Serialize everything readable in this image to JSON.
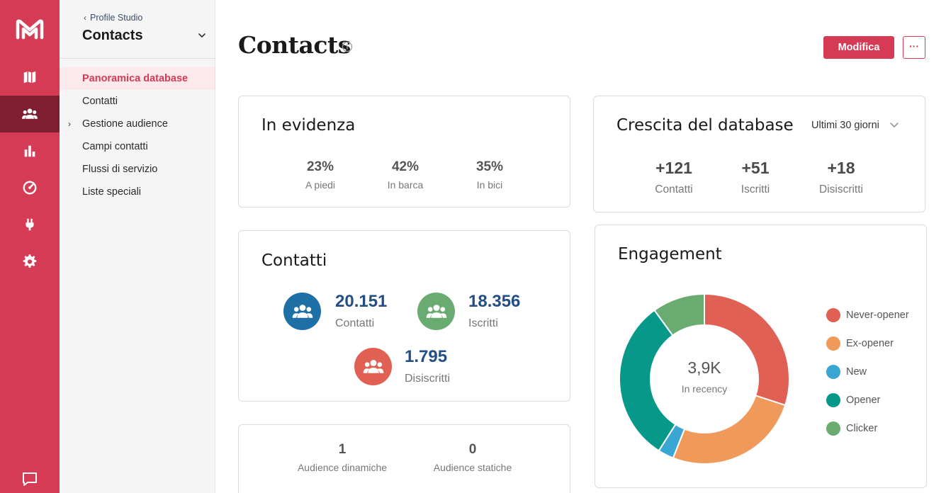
{
  "colors": {
    "brand": "#d63b55",
    "brand_dark": "#7e1e30",
    "accent_blue": "#234f86"
  },
  "rail": {
    "logo": "mailup-logo",
    "items": [
      {
        "icon": "map-icon"
      },
      {
        "icon": "users-icon",
        "active": true
      },
      {
        "icon": "bar-chart-icon"
      },
      {
        "icon": "gauge-icon"
      },
      {
        "icon": "plug-icon"
      },
      {
        "icon": "gear-icon"
      }
    ],
    "footer_icon": "chat-icon"
  },
  "subnav": {
    "back_label": "Profile Studio",
    "title": "Contacts",
    "items": [
      {
        "label": "Panoramica database",
        "active": true
      },
      {
        "label": "Contatti"
      },
      {
        "label": "Gestione audience",
        "expandable": true
      },
      {
        "label": "Campi contatti"
      },
      {
        "label": "Flussi di servizio"
      },
      {
        "label": "Liste speciali"
      }
    ]
  },
  "header": {
    "title": "Contacts",
    "edit_label": "Modifica",
    "more_label": "···"
  },
  "highlights": {
    "title": "In evidenza",
    "stats": [
      {
        "value": "23%",
        "label": "A piedi"
      },
      {
        "value": "42%",
        "label": "In barca"
      },
      {
        "value": "35%",
        "label": "In bici"
      }
    ]
  },
  "growth": {
    "title": "Crescita del database",
    "period": "Ultimi 30 giorni",
    "stats": [
      {
        "value": "+121",
        "label": "Contatti"
      },
      {
        "value": "+51",
        "label": "Iscritti"
      },
      {
        "value": "+18",
        "label": "Disiscritti"
      }
    ]
  },
  "contacts": {
    "title": "Contatti",
    "stats": [
      {
        "value": "20.151",
        "label": "Contatti",
        "color": "#1d6fa5"
      },
      {
        "value": "18.356",
        "label": "Iscritti",
        "color": "#6aab72"
      },
      {
        "value": "1.795",
        "label": "Disiscritti",
        "color": "#e06153"
      }
    ]
  },
  "audiences": {
    "stats": [
      {
        "value": "1",
        "label": "Audience dinamiche"
      },
      {
        "value": "0",
        "label": "Audience statiche"
      }
    ]
  },
  "engagement": {
    "title": "Engagement",
    "center_value": "3,9K",
    "center_label": "In recency",
    "legend": [
      {
        "label": "Never-opener",
        "color": "#e06153"
      },
      {
        "label": "Ex-opener",
        "color": "#ef9a5a"
      },
      {
        "label": "New",
        "color": "#3aa6d4"
      },
      {
        "label": "Opener",
        "color": "#06998a"
      },
      {
        "label": "Clicker",
        "color": "#6aab72"
      }
    ]
  },
  "chart_data": {
    "type": "pie",
    "categories": [
      "Never-opener",
      "Ex-opener",
      "New",
      "Opener",
      "Clicker"
    ],
    "values": [
      30,
      26,
      3,
      31,
      10
    ],
    "colors": [
      "#e06153",
      "#ef9a5a",
      "#3aa6d4",
      "#06998a",
      "#6aab72"
    ],
    "title": "Engagement",
    "center_text": "3,9K"
  }
}
